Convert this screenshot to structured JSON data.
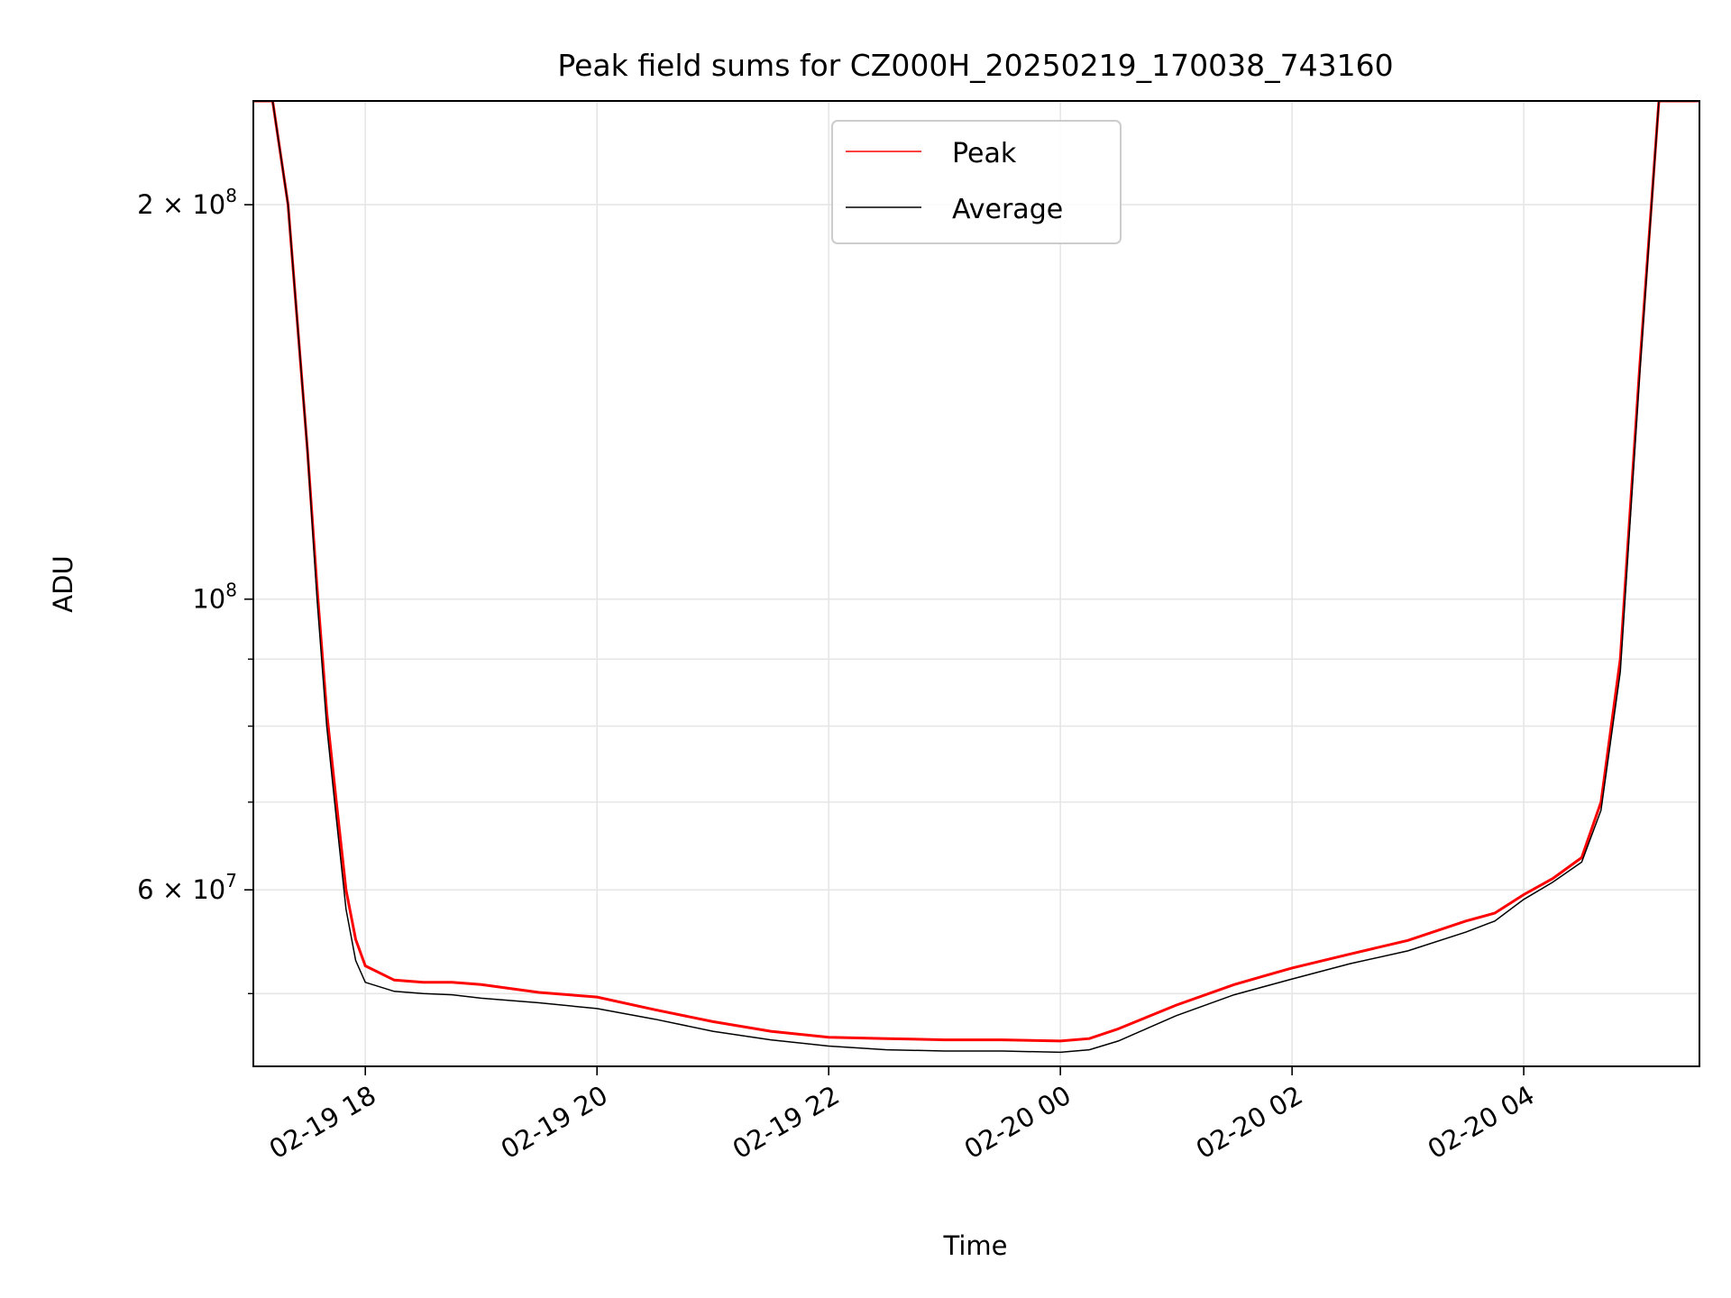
{
  "chart_data": {
    "type": "line",
    "title": "Peak field sums for CZ000H_20250219_170038_743160",
    "xlabel": "Time",
    "ylabel": "ADU",
    "yscale": "log",
    "ylim": [
      44000000,
      240000000
    ],
    "xlim": [
      "2025-02-19T17:02",
      "2025-02-20T05:31"
    ],
    "grid": true,
    "legend": "upper center",
    "x_ticks": [
      {
        "t": "2025-02-19T18:00",
        "label": "02-19 18"
      },
      {
        "t": "2025-02-19T20:00",
        "label": "02-19 20"
      },
      {
        "t": "2025-02-19T22:00",
        "label": "02-19 22"
      },
      {
        "t": "2025-02-20T00:00",
        "label": "02-20 00"
      },
      {
        "t": "2025-02-20T02:00",
        "label": "02-20 02"
      },
      {
        "t": "2025-02-20T04:00",
        "label": "02-20 04"
      }
    ],
    "y_major_ticks": [
      {
        "value": 60000000,
        "mantissa": "6",
        "exp": "7"
      },
      {
        "value": 100000000,
        "mantissa": "",
        "exp": "8"
      },
      {
        "value": 200000000,
        "mantissa": "2",
        "exp": "8"
      }
    ],
    "y_minor_ticks": [
      50000000,
      70000000,
      80000000,
      90000000
    ],
    "series": [
      {
        "name": "Peak",
        "color": "#ff0000",
        "points": [
          [
            "2025-02-19T17:02",
            240000000
          ],
          [
            "2025-02-19T17:12",
            240000000
          ],
          [
            "2025-02-19T17:20",
            200000000
          ],
          [
            "2025-02-19T17:30",
            130000000
          ],
          [
            "2025-02-19T17:35",
            102000000
          ],
          [
            "2025-02-19T17:40",
            82000000
          ],
          [
            "2025-02-19T17:45",
            70000000
          ],
          [
            "2025-02-19T17:50",
            60000000
          ],
          [
            "2025-02-19T17:55",
            55000000
          ],
          [
            "2025-02-19T18:00",
            52500000
          ],
          [
            "2025-02-19T18:15",
            51200000
          ],
          [
            "2025-02-19T18:30",
            51000000
          ],
          [
            "2025-02-19T18:45",
            51000000
          ],
          [
            "2025-02-19T19:00",
            50800000
          ],
          [
            "2025-02-19T19:30",
            50100000
          ],
          [
            "2025-02-19T20:00",
            49700000
          ],
          [
            "2025-02-19T20:30",
            48600000
          ],
          [
            "2025-02-19T21:00",
            47600000
          ],
          [
            "2025-02-19T21:30",
            46800000
          ],
          [
            "2025-02-19T22:00",
            46300000
          ],
          [
            "2025-02-19T22:30",
            46200000
          ],
          [
            "2025-02-19T23:00",
            46100000
          ],
          [
            "2025-02-19T23:30",
            46100000
          ],
          [
            "2025-02-20T00:00",
            46000000
          ],
          [
            "2025-02-20T00:15",
            46200000
          ],
          [
            "2025-02-20T00:30",
            47000000
          ],
          [
            "2025-02-20T01:00",
            49000000
          ],
          [
            "2025-02-20T01:30",
            50800000
          ],
          [
            "2025-02-20T02:00",
            52300000
          ],
          [
            "2025-02-20T02:30",
            53600000
          ],
          [
            "2025-02-20T03:00",
            54900000
          ],
          [
            "2025-02-20T03:30",
            56800000
          ],
          [
            "2025-02-20T03:45",
            57600000
          ],
          [
            "2025-02-20T04:00",
            59500000
          ],
          [
            "2025-02-20T04:15",
            61200000
          ],
          [
            "2025-02-20T04:30",
            63500000
          ],
          [
            "2025-02-20T04:40",
            70000000
          ],
          [
            "2025-02-20T04:50",
            90000000
          ],
          [
            "2025-02-20T05:00",
            150000000
          ],
          [
            "2025-02-20T05:10",
            240000000
          ],
          [
            "2025-02-20T05:31",
            240000000
          ]
        ]
      },
      {
        "name": "Average",
        "color": "#000000",
        "points": [
          [
            "2025-02-19T17:02",
            240000000
          ],
          [
            "2025-02-19T17:12",
            240000000
          ],
          [
            "2025-02-19T17:20",
            200000000
          ],
          [
            "2025-02-19T17:30",
            130000000
          ],
          [
            "2025-02-19T17:35",
            100000000
          ],
          [
            "2025-02-19T17:40",
            80000000
          ],
          [
            "2025-02-19T17:45",
            68000000
          ],
          [
            "2025-02-19T17:50",
            58000000
          ],
          [
            "2025-02-19T17:55",
            53000000
          ],
          [
            "2025-02-19T18:00",
            51000000
          ],
          [
            "2025-02-19T18:15",
            50200000
          ],
          [
            "2025-02-19T18:30",
            50000000
          ],
          [
            "2025-02-19T18:45",
            49900000
          ],
          [
            "2025-02-19T19:00",
            49600000
          ],
          [
            "2025-02-19T19:30",
            49200000
          ],
          [
            "2025-02-19T20:00",
            48700000
          ],
          [
            "2025-02-19T20:30",
            47800000
          ],
          [
            "2025-02-19T21:00",
            46800000
          ],
          [
            "2025-02-19T21:30",
            46100000
          ],
          [
            "2025-02-19T22:00",
            45600000
          ],
          [
            "2025-02-19T22:30",
            45300000
          ],
          [
            "2025-02-19T23:00",
            45200000
          ],
          [
            "2025-02-19T23:30",
            45200000
          ],
          [
            "2025-02-20T00:00",
            45100000
          ],
          [
            "2025-02-20T00:15",
            45300000
          ],
          [
            "2025-02-20T00:30",
            46000000
          ],
          [
            "2025-02-20T01:00",
            48100000
          ],
          [
            "2025-02-20T01:30",
            49900000
          ],
          [
            "2025-02-20T02:00",
            51300000
          ],
          [
            "2025-02-20T02:30",
            52700000
          ],
          [
            "2025-02-20T03:00",
            53900000
          ],
          [
            "2025-02-20T03:30",
            55700000
          ],
          [
            "2025-02-20T03:45",
            56800000
          ],
          [
            "2025-02-20T04:00",
            59000000
          ],
          [
            "2025-02-20T04:15",
            60800000
          ],
          [
            "2025-02-20T04:30",
            63000000
          ],
          [
            "2025-02-20T04:40",
            69000000
          ],
          [
            "2025-02-20T04:50",
            88000000
          ],
          [
            "2025-02-20T05:00",
            148000000
          ],
          [
            "2025-02-20T05:10",
            240000000
          ],
          [
            "2025-02-20T05:31",
            240000000
          ]
        ]
      }
    ]
  }
}
